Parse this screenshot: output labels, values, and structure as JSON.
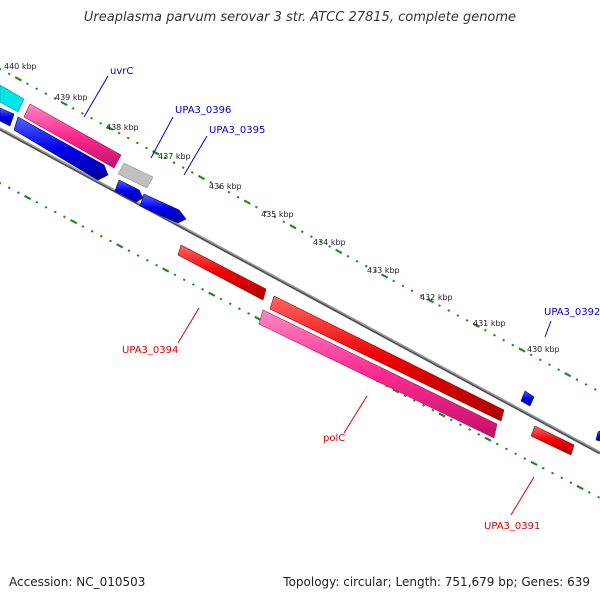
{
  "title": "Ureaplasma parvum serovar 3 str. ATCC 27815, complete genome",
  "accession": "Accession: NC_010503",
  "summary": "Topology: circular; Length: 751,679 bp; Genes: 639",
  "scale_labels": [
    "440 kbp",
    "439 kbp",
    "438 kbp",
    "437 kbp",
    "436 kbp",
    "435 kbp",
    "434 kbp",
    "433 kbp",
    "432 kbp",
    "431 kbp",
    "430 kbp"
  ],
  "gene_labels": [
    {
      "name": "uvrC",
      "color": "#0000cc"
    },
    {
      "name": "UPA3_0396",
      "color": "#0000cc"
    },
    {
      "name": "UPA3_0395",
      "color": "#0000cc"
    },
    {
      "name": "UPA3_0392",
      "color": "#0000cc"
    },
    {
      "name": "UPA3_0394",
      "color": "#dd0000"
    },
    {
      "name": "polC",
      "color": "#dd0000"
    },
    {
      "name": "UPA3_0391",
      "color": "#dd0000"
    }
  ],
  "colors": {
    "forward_cds": "#0000ee",
    "reverse_cds": "#ee0000",
    "forward_feature": "#ff3399",
    "highlight": "#00e5e5",
    "other": "#c0c0c0",
    "backbone": "#808080",
    "tick": "#228b22"
  }
}
